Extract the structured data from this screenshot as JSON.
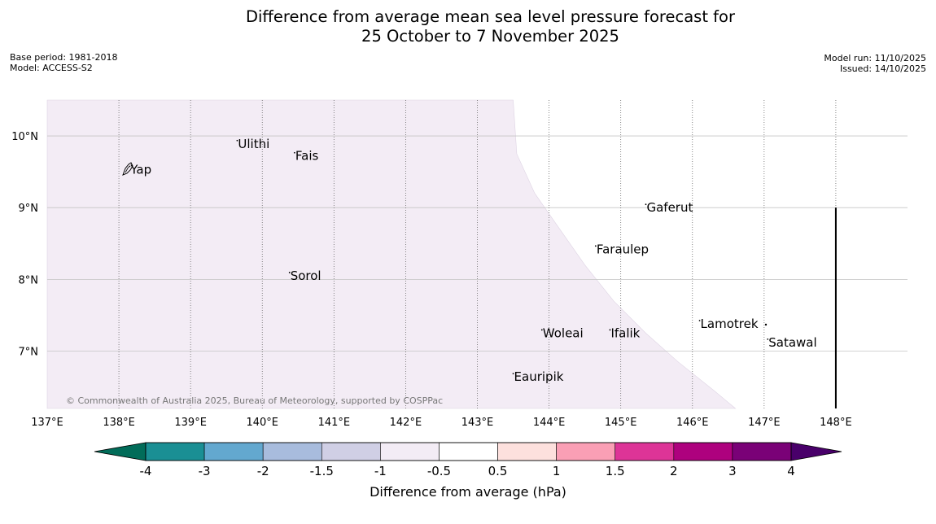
{
  "title": {
    "line1": "Difference from average mean sea level pressure forecast for",
    "line2": "25 October to 7 November 2025"
  },
  "meta": {
    "base_period": "Base period: 1981-2018",
    "model": "Model: ACCESS-S2",
    "model_run": "Model run: 11/10/2025",
    "issued": "Issued: 14/10/2025"
  },
  "map": {
    "lon_range": [
      137,
      149
    ],
    "lat_range": [
      6.2,
      10.5
    ],
    "lon_ticks": [
      {
        "value": 137,
        "label": "137°E"
      },
      {
        "value": 138,
        "label": "138°E"
      },
      {
        "value": 139,
        "label": "139°E"
      },
      {
        "value": 140,
        "label": "140°E"
      },
      {
        "value": 141,
        "label": "141°E"
      },
      {
        "value": 142,
        "label": "142°E"
      },
      {
        "value": 143,
        "label": "143°E"
      },
      {
        "value": 144,
        "label": "144°E"
      },
      {
        "value": 145,
        "label": "145°E"
      },
      {
        "value": 146,
        "label": "146°E"
      },
      {
        "value": 147,
        "label": "147°E"
      },
      {
        "value": 148,
        "label": "148°E"
      }
    ],
    "lat_ticks": [
      {
        "value": 10,
        "label": "10°N"
      },
      {
        "value": 9,
        "label": "9°N"
      },
      {
        "value": 8,
        "label": "8°N"
      },
      {
        "value": 7,
        "label": "7°N"
      }
    ],
    "shaded_color": "#f3ecf5",
    "shaded_boundary": [
      [
        143.5,
        10.5
      ],
      [
        143.55,
        9.75
      ],
      [
        143.8,
        9.2
      ],
      [
        144.15,
        8.7
      ],
      [
        144.5,
        8.2
      ],
      [
        144.9,
        7.7
      ],
      [
        145.35,
        7.25
      ],
      [
        145.8,
        6.85
      ],
      [
        146.3,
        6.45
      ],
      [
        146.6,
        6.2
      ]
    ],
    "places": [
      {
        "name": "Yap",
        "lon": 138.15,
        "lat": 9.53
      },
      {
        "name": "Ulithi",
        "lon": 139.65,
        "lat": 9.89
      },
      {
        "name": "Fais",
        "lon": 140.45,
        "lat": 9.72
      },
      {
        "name": "Gaferut",
        "lon": 145.35,
        "lat": 9.0
      },
      {
        "name": "Faraulep",
        "lon": 144.65,
        "lat": 8.42
      },
      {
        "name": "Sorol",
        "lon": 140.38,
        "lat": 8.05
      },
      {
        "name": "Woleai",
        "lon": 143.9,
        "lat": 7.25
      },
      {
        "name": "Ifalik",
        "lon": 144.85,
        "lat": 7.25
      },
      {
        "name": "Lamotrek",
        "lon": 146.1,
        "lat": 7.38
      },
      {
        "name": "Satawal",
        "lon": 147.05,
        "lat": 7.12
      },
      {
        "name": "Eauripik",
        "lon": 143.5,
        "lat": 6.64
      }
    ],
    "boundary_line": {
      "lon": 148.0,
      "lat_from": 9.0,
      "lat_to": 6.2
    },
    "copyright": "© Commonwealth of Australia 2025, Bureau of Meteorology, supported by COSPPac"
  },
  "colorbar": {
    "label": "Difference from average (hPa)",
    "ticks": [
      "-4",
      "-3",
      "-2",
      "-1.5",
      "-1",
      "-0.5",
      "0.5",
      "1",
      "1.5",
      "2",
      "3",
      "4"
    ],
    "colors": [
      "#1a8f94",
      "#63a8cf",
      "#a8bcdd",
      "#d0cfe5",
      "#f3ecf5",
      "#ffffff",
      "#fde0dd",
      "#fa9fb5",
      "#dd3497",
      "#ae017e",
      "#7a0177"
    ],
    "extend_low": "#016c59",
    "extend_high": "#49006a"
  }
}
